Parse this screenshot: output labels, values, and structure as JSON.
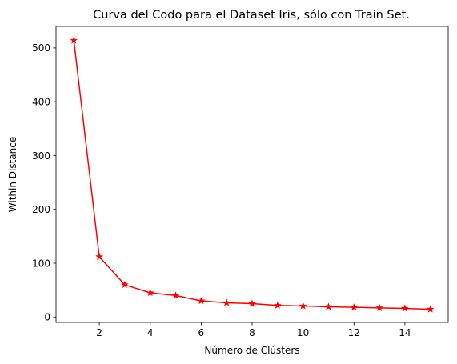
{
  "chart_data": {
    "type": "line",
    "title": "Curva del Codo para el Dataset Iris, sólo con Train Set.",
    "xlabel": "Número de Clústers",
    "ylabel": "Within Distance",
    "x": [
      1,
      2,
      3,
      4,
      5,
      6,
      7,
      8,
      9,
      10,
      11,
      12,
      13,
      14,
      15
    ],
    "series": [
      {
        "values": [
          514,
          112,
          60,
          45,
          40,
          30,
          26.5,
          25,
          21.5,
          20.5,
          19,
          18,
          17,
          16,
          14.5
        ],
        "color": "#ff0000",
        "marker": "star"
      }
    ],
    "xticks": [
      2,
      4,
      6,
      8,
      10,
      12,
      14
    ],
    "yticks": [
      0,
      100,
      200,
      300,
      400,
      500
    ],
    "xlim": [
      0.3,
      15.7
    ],
    "ylim": [
      -10,
      540
    ],
    "grid": false,
    "legend": "none"
  }
}
